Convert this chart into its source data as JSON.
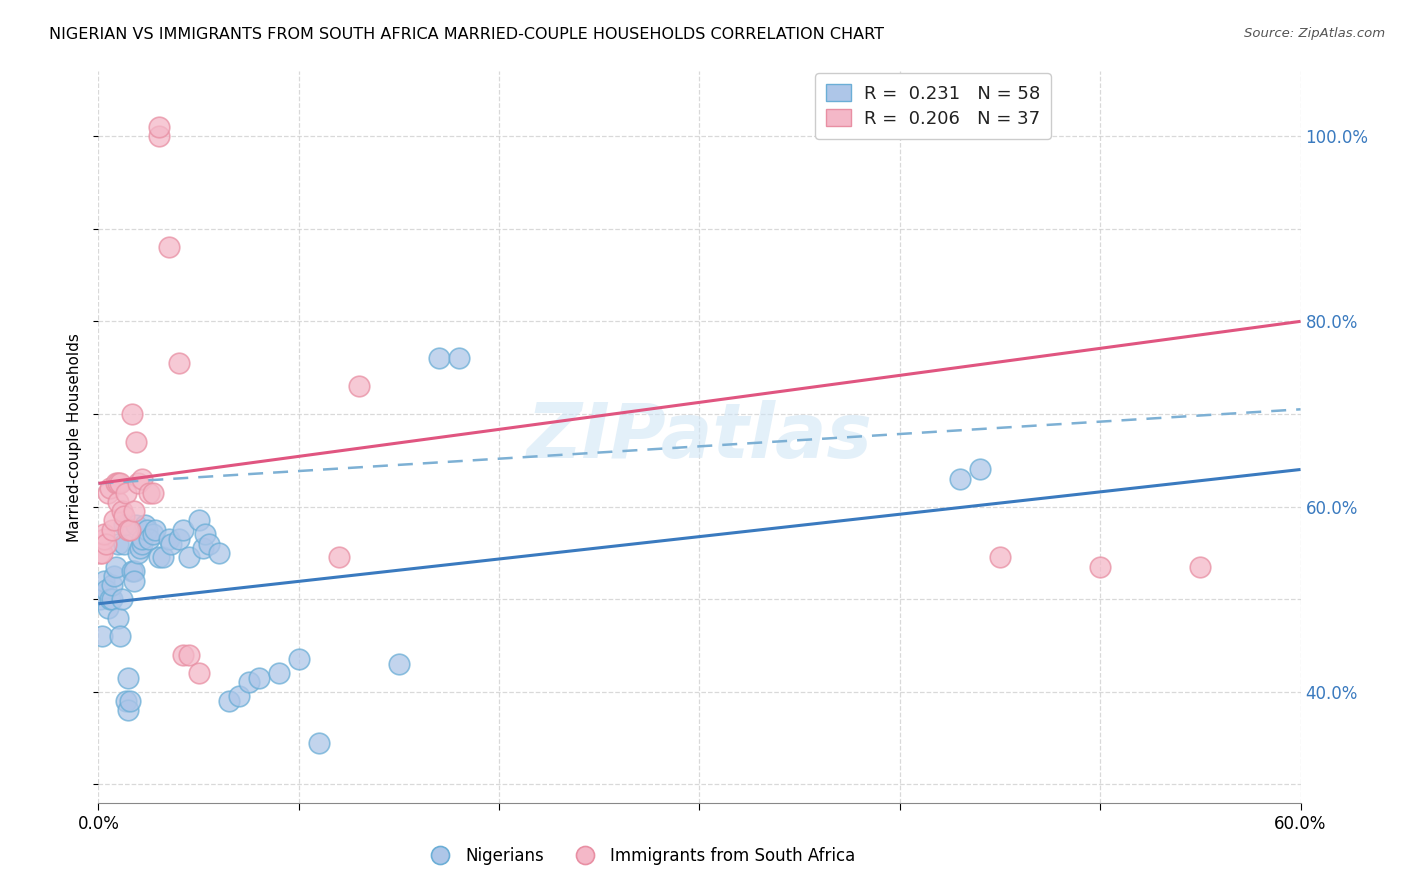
{
  "title": "NIGERIAN VS IMMIGRANTS FROM SOUTH AFRICA MARRIED-COUPLE HOUSEHOLDS CORRELATION CHART",
  "source": "Source: ZipAtlas.com",
  "ylabel": "Married-couple Households",
  "blue_color": "#aec6e8",
  "blue_edge_color": "#6baed6",
  "pink_color": "#f4b8c8",
  "pink_edge_color": "#e88fa3",
  "blue_line_color": "#3a7abf",
  "pink_line_color": "#e05580",
  "dash_color": "#7db0d4",
  "watermark": "ZIPatlas",
  "nigerian_points": [
    [
      0.001,
      0.5
    ],
    [
      0.002,
      0.46
    ],
    [
      0.003,
      0.505
    ],
    [
      0.003,
      0.52
    ],
    [
      0.004,
      0.51
    ],
    [
      0.005,
      0.49
    ],
    [
      0.006,
      0.5
    ],
    [
      0.007,
      0.5
    ],
    [
      0.007,
      0.515
    ],
    [
      0.008,
      0.525
    ],
    [
      0.009,
      0.535
    ],
    [
      0.01,
      0.48
    ],
    [
      0.01,
      0.56
    ],
    [
      0.011,
      0.46
    ],
    [
      0.012,
      0.5
    ],
    [
      0.013,
      0.56
    ],
    [
      0.013,
      0.58
    ],
    [
      0.014,
      0.39
    ],
    [
      0.015,
      0.38
    ],
    [
      0.015,
      0.415
    ],
    [
      0.016,
      0.39
    ],
    [
      0.017,
      0.53
    ],
    [
      0.018,
      0.53
    ],
    [
      0.018,
      0.52
    ],
    [
      0.019,
      0.58
    ],
    [
      0.02,
      0.55
    ],
    [
      0.021,
      0.555
    ],
    [
      0.022,
      0.56
    ],
    [
      0.022,
      0.565
    ],
    [
      0.023,
      0.58
    ],
    [
      0.024,
      0.575
    ],
    [
      0.025,
      0.565
    ],
    [
      0.027,
      0.57
    ],
    [
      0.028,
      0.575
    ],
    [
      0.03,
      0.545
    ],
    [
      0.032,
      0.545
    ],
    [
      0.035,
      0.565
    ],
    [
      0.036,
      0.56
    ],
    [
      0.04,
      0.565
    ],
    [
      0.042,
      0.575
    ],
    [
      0.045,
      0.545
    ],
    [
      0.05,
      0.585
    ],
    [
      0.052,
      0.555
    ],
    [
      0.053,
      0.57
    ],
    [
      0.055,
      0.56
    ],
    [
      0.06,
      0.55
    ],
    [
      0.065,
      0.39
    ],
    [
      0.07,
      0.395
    ],
    [
      0.075,
      0.41
    ],
    [
      0.08,
      0.415
    ],
    [
      0.09,
      0.42
    ],
    [
      0.1,
      0.435
    ],
    [
      0.11,
      0.345
    ],
    [
      0.15,
      0.43
    ],
    [
      0.17,
      0.76
    ],
    [
      0.18,
      0.76
    ],
    [
      0.43,
      0.63
    ],
    [
      0.44,
      0.64
    ]
  ],
  "sa_points": [
    [
      0.001,
      0.55
    ],
    [
      0.002,
      0.55
    ],
    [
      0.003,
      0.565
    ],
    [
      0.003,
      0.57
    ],
    [
      0.004,
      0.56
    ],
    [
      0.005,
      0.615
    ],
    [
      0.006,
      0.62
    ],
    [
      0.007,
      0.575
    ],
    [
      0.008,
      0.585
    ],
    [
      0.009,
      0.625
    ],
    [
      0.01,
      0.625
    ],
    [
      0.01,
      0.605
    ],
    [
      0.011,
      0.625
    ],
    [
      0.012,
      0.595
    ],
    [
      0.013,
      0.59
    ],
    [
      0.014,
      0.615
    ],
    [
      0.015,
      0.575
    ],
    [
      0.016,
      0.575
    ],
    [
      0.017,
      0.7
    ],
    [
      0.018,
      0.595
    ],
    [
      0.019,
      0.67
    ],
    [
      0.02,
      0.625
    ],
    [
      0.022,
      0.63
    ],
    [
      0.025,
      0.615
    ],
    [
      0.027,
      0.615
    ],
    [
      0.03,
      1.0
    ],
    [
      0.03,
      1.01
    ],
    [
      0.035,
      0.88
    ],
    [
      0.04,
      0.755
    ],
    [
      0.042,
      0.44
    ],
    [
      0.045,
      0.44
    ],
    [
      0.05,
      0.42
    ],
    [
      0.12,
      0.545
    ],
    [
      0.13,
      0.73
    ],
    [
      0.45,
      0.545
    ],
    [
      0.5,
      0.535
    ],
    [
      0.55,
      0.535
    ]
  ],
  "blue_trend_x": [
    0.0,
    0.6
  ],
  "blue_trend_y": [
    0.495,
    0.64
  ],
  "pink_trend_x": [
    0.0,
    0.6
  ],
  "pink_trend_y": [
    0.625,
    0.8
  ],
  "dash_trend_x": [
    0.0,
    0.6
  ],
  "dash_trend_y": [
    0.625,
    0.705
  ],
  "xlim": [
    0.0,
    0.6
  ],
  "ylim": [
    0.28,
    1.07
  ],
  "x_ticks": [
    0.0,
    0.1,
    0.2,
    0.3,
    0.4,
    0.5,
    0.6
  ],
  "x_tick_labels": [
    "0.0%",
    "",
    "",
    "",
    "",
    "",
    "60.0%"
  ],
  "y_ticks_right_vals": [
    0.4,
    0.6,
    0.8,
    1.0
  ],
  "y_ticks_right_labels": [
    "40.0%",
    "60.0%",
    "80.0%",
    "100.0%"
  ],
  "background_color": "#ffffff",
  "grid_color": "#d0d0d0"
}
